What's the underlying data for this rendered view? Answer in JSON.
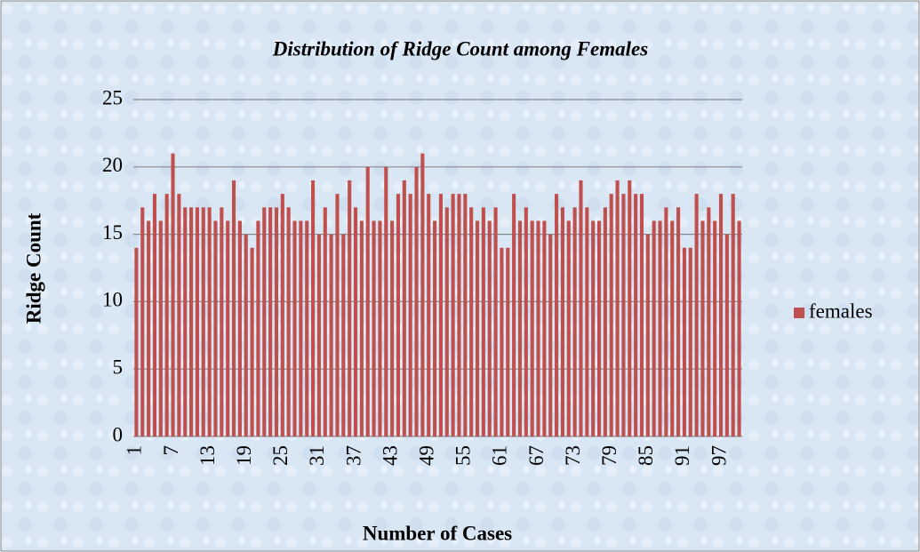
{
  "chart_data": {
    "type": "bar",
    "title": "Distribution of Ridge Count among Females",
    "x_label": "Number of Cases",
    "y_label": "Ridge Count",
    "categories": [
      "1",
      null,
      null,
      null,
      null,
      null,
      "7",
      null,
      null,
      null,
      null,
      null,
      "13",
      null,
      null,
      null,
      null,
      null,
      "19",
      null,
      null,
      null,
      null,
      null,
      "25",
      null,
      null,
      null,
      null,
      null,
      "31",
      null,
      null,
      null,
      null,
      null,
      "37",
      null,
      null,
      null,
      null,
      null,
      "43",
      null,
      null,
      null,
      null,
      null,
      "49",
      null,
      null,
      null,
      null,
      null,
      "55",
      null,
      null,
      null,
      null,
      null,
      "61",
      null,
      null,
      null,
      null,
      null,
      "67",
      null,
      null,
      null,
      null,
      null,
      "73",
      null,
      null,
      null,
      null,
      null,
      "79",
      null,
      null,
      null,
      null,
      null,
      "85",
      null,
      null,
      null,
      null,
      null,
      "91",
      null,
      null,
      null,
      null,
      null,
      "97",
      null,
      null,
      null
    ],
    "series": [
      {
        "name": "females",
        "color": "#c0504d",
        "values": [
          14,
          17,
          16,
          18,
          16,
          18,
          21,
          18,
          17,
          17,
          17,
          17,
          17,
          16,
          17,
          16,
          19,
          16,
          15,
          14,
          16,
          17,
          17,
          17,
          18,
          17,
          16,
          16,
          16,
          19,
          15,
          17,
          15,
          18,
          15,
          19,
          17,
          16,
          20,
          16,
          16,
          20,
          16,
          18,
          19,
          18,
          20,
          21,
          18,
          16,
          18,
          17,
          18,
          18,
          18,
          17,
          16,
          17,
          16,
          17,
          14,
          14,
          18,
          16,
          17,
          16,
          16,
          16,
          15,
          18,
          17,
          16,
          17,
          19,
          17,
          16,
          16,
          17,
          18,
          19,
          18,
          19,
          18,
          18,
          15,
          16,
          16,
          17,
          16,
          17,
          14,
          14,
          18,
          16,
          17,
          16,
          18,
          15,
          18,
          16
        ]
      }
    ],
    "ylim": [
      0,
      25
    ],
    "yticks": [
      0,
      5,
      10,
      15,
      20,
      25
    ],
    "grid": true,
    "legend": "right"
  }
}
